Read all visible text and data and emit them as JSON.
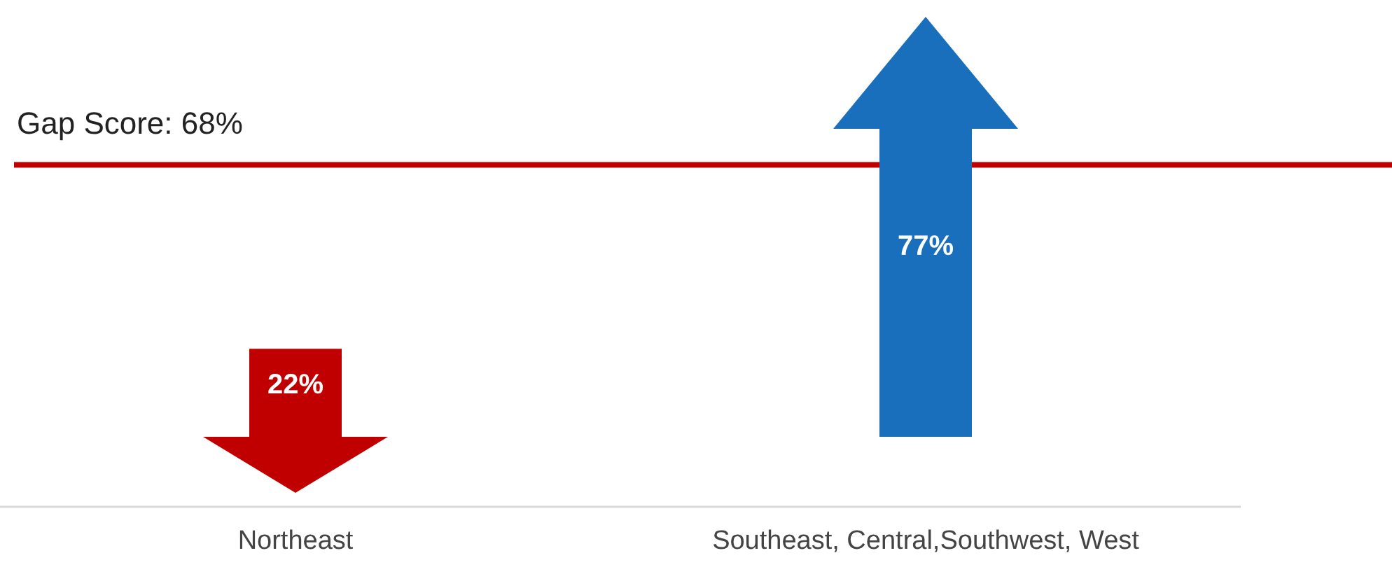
{
  "chart_data": {
    "type": "bar",
    "categories": [
      "Northeast",
      "Southeast, Central,Southwest, West"
    ],
    "values": [
      22,
      77
    ],
    "colors": [
      "#c00000",
      "#1a6fbd"
    ],
    "value_labels": [
      "22%",
      "77%"
    ],
    "ref_lines": [
      {
        "axis": "y",
        "value": 68,
        "label": "Gap Score: 68%",
        "color": "#c00000"
      }
    ]
  }
}
